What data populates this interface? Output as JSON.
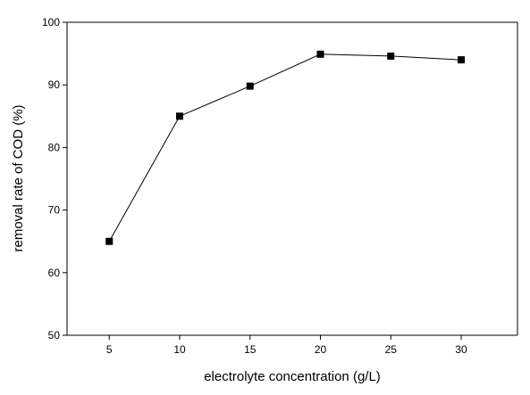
{
  "chart_data": {
    "type": "line",
    "title": "",
    "xlabel": "electrolyte concentration (g/L)",
    "ylabel": "removal rate of COD (%)",
    "xlim": [
      2,
      34
    ],
    "ylim": [
      50,
      100
    ],
    "x_ticks": [
      5,
      10,
      15,
      20,
      25,
      30
    ],
    "y_ticks": [
      50,
      60,
      70,
      80,
      90,
      100
    ],
    "grid": false,
    "legend": "none",
    "marker": "square",
    "series": [
      {
        "x": [
          5,
          10,
          15,
          20,
          25,
          30
        ],
        "values": [
          65,
          85,
          89.8,
          94.9,
          94.6,
          94.0
        ]
      }
    ]
  }
}
